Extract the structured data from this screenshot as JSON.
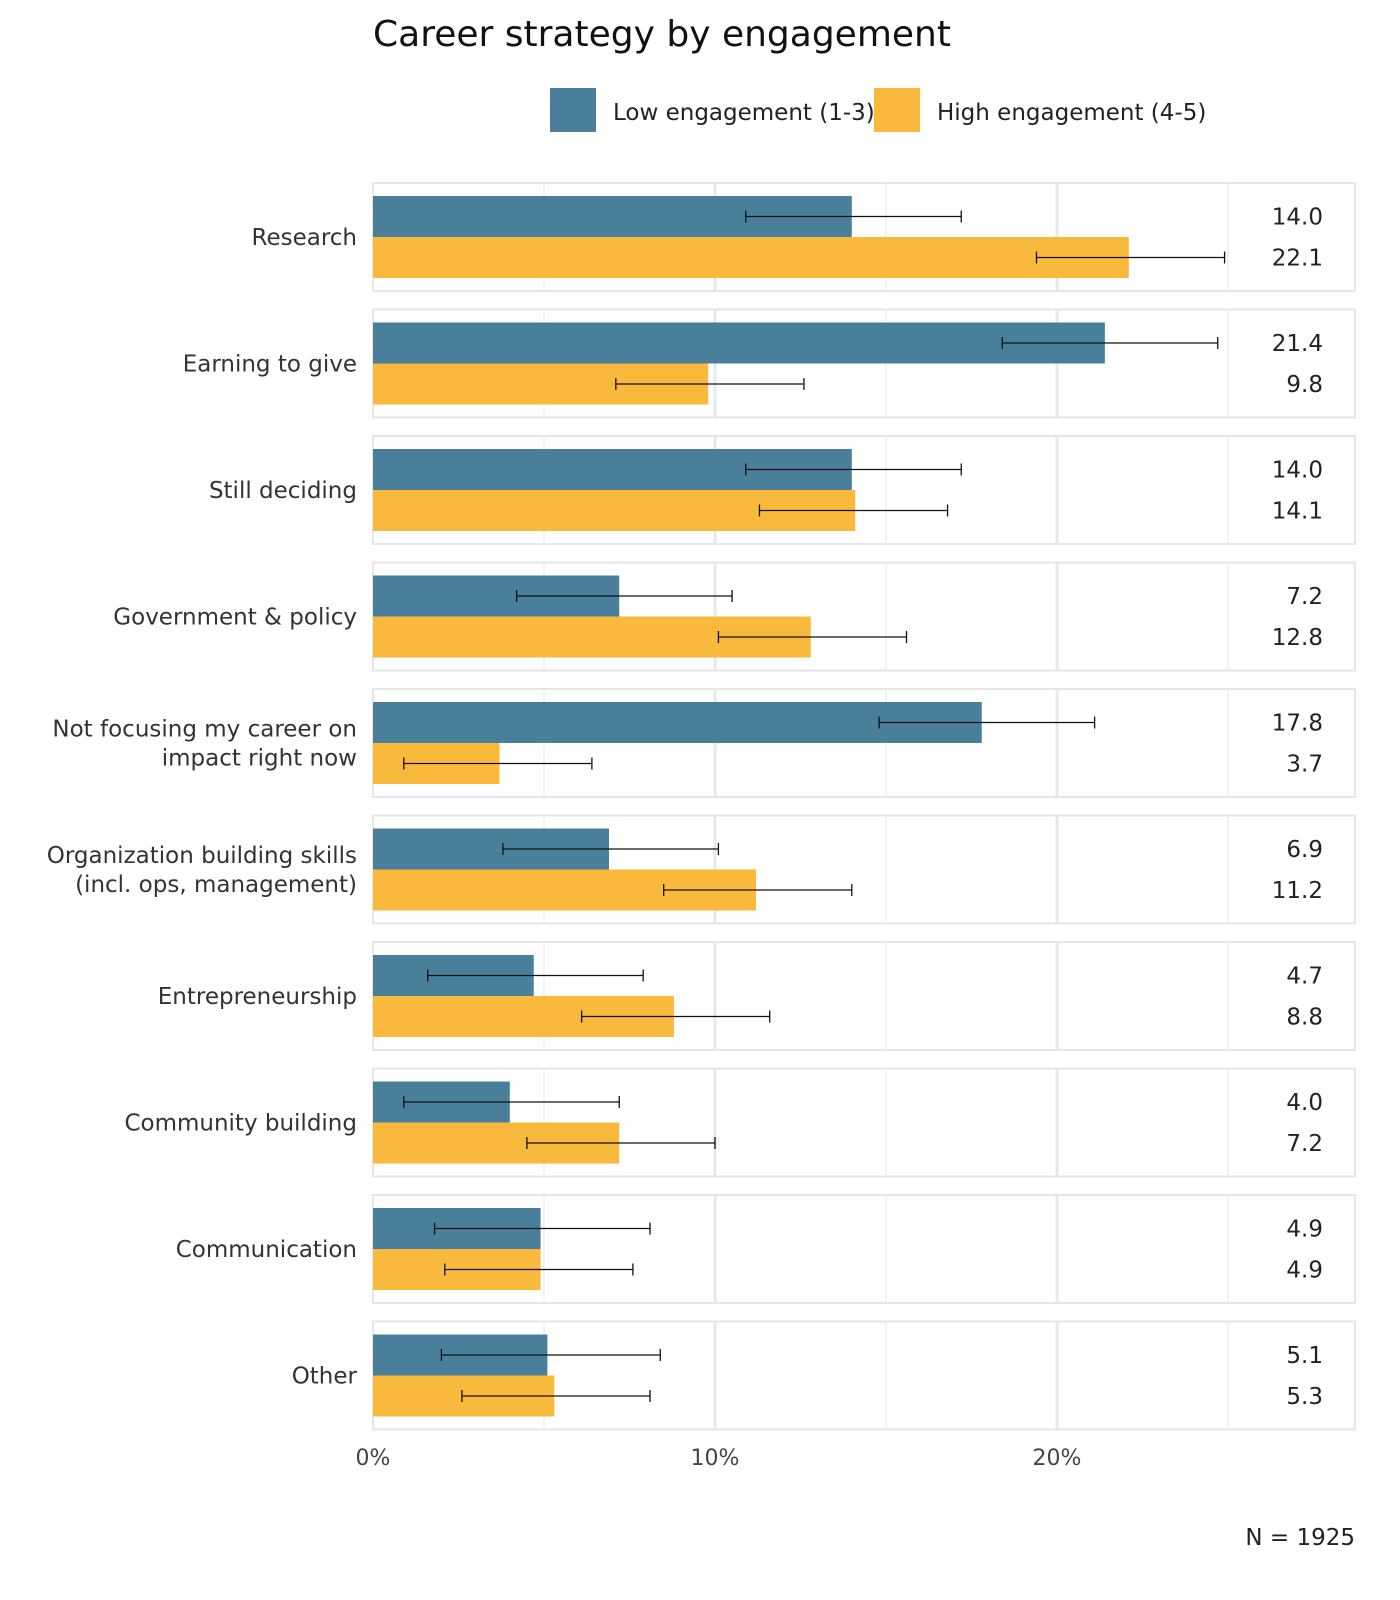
{
  "chart_data": {
    "type": "bar",
    "orientation": "horizontal",
    "title": "Career strategy by engagement",
    "xlabel": "",
    "ylabel": "",
    "xlim": [
      0,
      28.7
    ],
    "x_ticks": [
      "0%",
      "10%",
      "20%"
    ],
    "grid": true,
    "legend_position": "top",
    "colors": {
      "low": "#4a7f9c",
      "high": "#f9b93c"
    },
    "categories": [
      "Research",
      "Earning to give",
      "Still deciding",
      "Government & policy",
      "Not focusing my career on impact right now",
      "Organization building skills (incl. ops, management)",
      "Entrepreneurship",
      "Community building",
      "Communication",
      "Other"
    ],
    "category_lines": [
      [
        "Research"
      ],
      [
        "Earning to give"
      ],
      [
        "Still deciding"
      ],
      [
        "Government & policy"
      ],
      [
        "Not focusing my career on",
        "impact right now"
      ],
      [
        "Organization building skills",
        "(incl. ops, management)"
      ],
      [
        "Entrepreneurship"
      ],
      [
        "Community building"
      ],
      [
        "Communication"
      ],
      [
        "Other"
      ]
    ],
    "series": [
      {
        "name": "Low engagement (1-3)",
        "values": [
          14.0,
          21.4,
          14.0,
          7.2,
          17.8,
          6.9,
          4.7,
          4.0,
          4.9,
          5.1
        ],
        "error_low": [
          10.9,
          18.4,
          10.9,
          4.2,
          14.8,
          3.8,
          1.6,
          0.9,
          1.8,
          2.0
        ],
        "error_high": [
          17.2,
          24.7,
          17.2,
          10.5,
          21.1,
          10.1,
          7.9,
          7.2,
          8.1,
          8.4
        ]
      },
      {
        "name": "High engagement (4-5)",
        "values": [
          22.1,
          9.8,
          14.1,
          12.8,
          3.7,
          11.2,
          8.8,
          7.2,
          4.9,
          5.3
        ],
        "error_low": [
          19.4,
          7.1,
          11.3,
          10.1,
          0.9,
          8.5,
          6.1,
          4.5,
          2.1,
          2.6
        ],
        "error_high": [
          24.9,
          12.6,
          16.8,
          15.6,
          6.4,
          14.0,
          11.6,
          10.0,
          7.6,
          8.1
        ]
      }
    ],
    "annotation": "N = 1925"
  }
}
